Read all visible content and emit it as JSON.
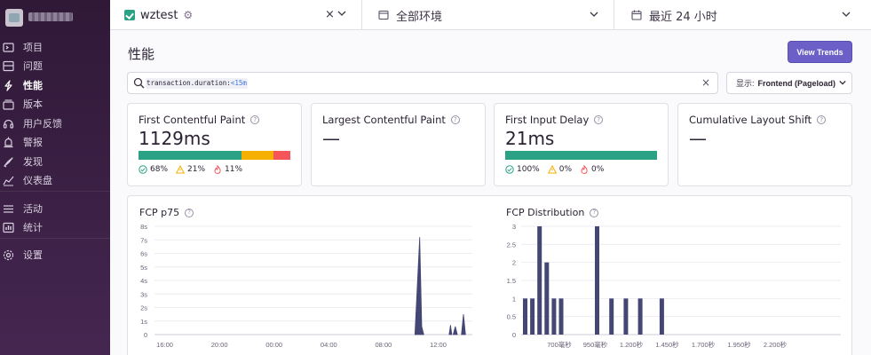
{
  "sidebar": {
    "items": [
      {
        "label": "项目",
        "icon": "projects-icon"
      },
      {
        "label": "问题",
        "icon": "issues-icon"
      },
      {
        "label": "性能",
        "icon": "performance-icon",
        "active": true
      },
      {
        "label": "版本",
        "icon": "releases-icon"
      },
      {
        "label": "用户反馈",
        "icon": "user-feedback-icon"
      },
      {
        "label": "警报",
        "icon": "alerts-icon"
      },
      {
        "label": "发现",
        "icon": "discover-icon"
      },
      {
        "label": "仪表盘",
        "icon": "dashboards-icon"
      },
      {
        "label": "活动",
        "icon": "activity-icon"
      },
      {
        "label": "统计",
        "icon": "stats-icon"
      },
      {
        "label": "设置",
        "icon": "settings-icon"
      }
    ]
  },
  "topbar": {
    "project": "wztest",
    "clear": "×",
    "environment": "全部环境",
    "date_range": "最近 24 小时"
  },
  "header": {
    "title": "性能",
    "trends_button": "View Trends"
  },
  "search": {
    "key": "transaction.duration:",
    "value": "<15m",
    "clear": "×"
  },
  "display": {
    "prefix": "显示:",
    "value": "Frontend (Pageload)"
  },
  "cards": [
    {
      "title": "First Contentful Paint",
      "value": "1129ms",
      "good": "68%",
      "meh": "21%",
      "poor": "11%",
      "good_frac": 0.68,
      "meh_frac": 0.21,
      "poor_frac": 0.11
    },
    {
      "title": "Largest Contentful Paint",
      "value": "—"
    },
    {
      "title": "First Input Delay",
      "value": "21ms",
      "good": "100%",
      "meh": "0%",
      "poor": "0%",
      "good_frac": 1.0,
      "meh_frac": 0,
      "poor_frac": 0
    },
    {
      "title": "Cumulative Layout Shift",
      "value": "—"
    }
  ],
  "colors": {
    "good": "#2ba185",
    "meh": "#f5b000",
    "poor": "#f55459",
    "accent": "#6c5fc7",
    "bar": "#444674"
  },
  "chart_data": [
    {
      "type": "area",
      "title": "FCP p75",
      "x_ticks": [
        "16:00",
        "20:00",
        "00:00",
        "04:00",
        "08:00",
        "12:00"
      ],
      "y_ticks": [
        "0",
        "1s",
        "2s",
        "3s",
        "4s",
        "5s",
        "6s",
        "7s",
        "8s"
      ],
      "ylim": [
        0,
        8
      ],
      "xlim": [
        15.25,
        38.5
      ],
      "points": [
        {
          "x": 34.3,
          "y": 0
        },
        {
          "x": 34.65,
          "y": 7.2
        },
        {
          "x": 34.8,
          "y": 0.6
        },
        {
          "x": 34.95,
          "y": 0
        },
        {
          "x": 36.8,
          "y": 0
        },
        {
          "x": 36.9,
          "y": 0.7
        },
        {
          "x": 37.0,
          "y": 0
        },
        {
          "x": 37.1,
          "y": 0
        },
        {
          "x": 37.25,
          "y": 0.6
        },
        {
          "x": 37.4,
          "y": 0
        },
        {
          "x": 37.7,
          "y": 0
        },
        {
          "x": 37.85,
          "y": 1.5
        },
        {
          "x": 38.0,
          "y": 0
        }
      ],
      "unit": "s"
    },
    {
      "type": "bar",
      "title": "FCP Distribution",
      "y_ticks": [
        "0",
        "0.5",
        "1",
        "1.5",
        "2",
        "2.5",
        "3"
      ],
      "ylim": [
        0,
        3
      ],
      "x_ticks": [
        "700毫秒",
        "950毫秒",
        "1.200秒",
        "1.450秒",
        "1.700秒",
        "1.950秒",
        "2.200秒"
      ],
      "values": [
        1,
        1,
        3,
        2,
        1,
        1,
        0,
        0,
        0,
        0,
        3,
        0,
        1,
        0,
        1,
        0,
        1,
        0,
        0,
        1,
        0,
        0,
        0,
        0,
        0,
        0,
        0,
        0,
        0,
        0,
        0,
        0,
        0,
        0,
        0,
        0,
        0,
        0,
        0,
        0,
        0,
        0,
        0,
        0,
        0
      ]
    }
  ]
}
